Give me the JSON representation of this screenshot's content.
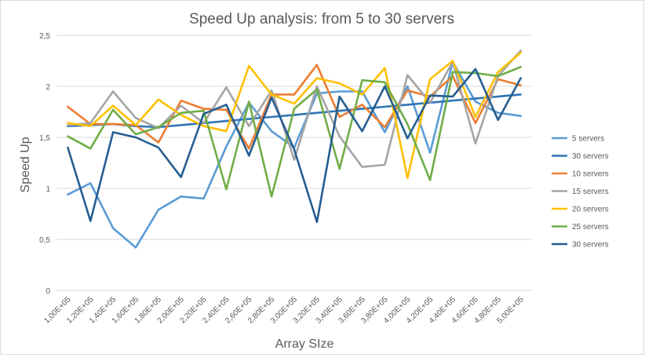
{
  "chart_data": {
    "type": "line",
    "title": "Speed Up analysis: from 5 to 30 servers",
    "xlabel": "Array SIze",
    "ylabel": "Speed Up",
    "ylim": [
      0,
      2.5
    ],
    "yticks": [
      "0",
      "0,5",
      "1",
      "1,5",
      "2",
      "2,5"
    ],
    "ytick_values": [
      0,
      0.5,
      1,
      1.5,
      2,
      2.5
    ],
    "grid": "horizontal",
    "legend_position": "right",
    "categories": [
      "1,00E+05",
      "1,20E+05",
      "1,40E+05",
      "1,60E+05",
      "1,80E+05",
      "2,00E+05",
      "2,20E+05",
      "2,40E+05",
      "2,60E+05",
      "2,80E+05",
      "3,00E+05",
      "3,20E+05",
      "3,40E+05",
      "3,60E+05",
      "3,80E+05",
      "4,00E+05",
      "4,20E+05",
      "4,40E+05",
      "4,60E+05",
      "4,80E+05",
      "5,00E+05"
    ],
    "series": [
      {
        "name": "5 servers",
        "color": "#5b9bd5",
        "values": [
          0.94,
          1.05,
          0.61,
          0.42,
          0.79,
          0.92,
          0.9,
          1.41,
          1.84,
          1.56,
          1.4,
          1.93,
          1.95,
          1.95,
          1.55,
          2.0,
          1.35,
          2.24,
          1.85,
          1.74,
          1.71
        ]
      },
      {
        "name": "30 servers",
        "color": "#2e75b6",
        "values": [
          1.61,
          1.62,
          1.63,
          1.61,
          1.6,
          1.62,
          1.64,
          1.66,
          1.68,
          1.7,
          1.72,
          1.74,
          1.76,
          1.78,
          1.8,
          1.82,
          1.84,
          1.86,
          1.88,
          1.9,
          1.92
        ]
      },
      {
        "name": "10 servers",
        "color": "#ed7d31",
        "values": [
          1.8,
          1.63,
          1.63,
          1.62,
          1.45,
          1.86,
          1.78,
          1.77,
          1.39,
          1.92,
          1.92,
          2.21,
          1.7,
          1.82,
          1.6,
          1.96,
          1.9,
          2.1,
          1.64,
          2.07,
          2.01
        ]
      },
      {
        "name": "15 servers",
        "color": "#a5a5a5",
        "values": [
          1.62,
          1.64,
          1.95,
          1.69,
          1.59,
          1.81,
          1.64,
          1.99,
          1.61,
          1.96,
          1.28,
          2.0,
          1.51,
          1.21,
          1.23,
          2.11,
          1.84,
          2.24,
          1.44,
          2.1,
          2.35
        ]
      },
      {
        "name": "20 servers",
        "color": "#ffc000",
        "values": [
          1.64,
          1.61,
          1.81,
          1.62,
          1.87,
          1.72,
          1.61,
          1.56,
          2.2,
          1.92,
          1.83,
          2.08,
          2.03,
          1.92,
          2.18,
          1.1,
          2.07,
          2.25,
          1.7,
          2.14,
          2.33
        ]
      },
      {
        "name": "25 servers",
        "color": "#70ad47",
        "values": [
          1.51,
          1.39,
          1.77,
          1.53,
          1.6,
          1.74,
          1.76,
          0.99,
          1.85,
          0.92,
          1.78,
          1.97,
          1.19,
          2.06,
          2.04,
          1.63,
          1.08,
          2.14,
          2.13,
          2.1,
          2.19
        ]
      },
      {
        "name": "30 servers",
        "color": "#255e91",
        "values": [
          1.4,
          0.68,
          1.55,
          1.5,
          1.4,
          1.11,
          1.73,
          1.82,
          1.32,
          1.89,
          1.38,
          0.67,
          1.9,
          1.56,
          2.0,
          1.49,
          1.91,
          1.9,
          2.17,
          1.67,
          2.08
        ]
      }
    ]
  }
}
